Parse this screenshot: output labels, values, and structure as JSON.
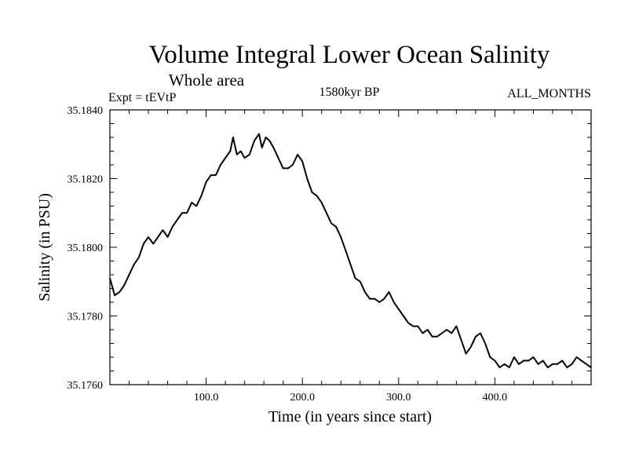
{
  "chart_data": {
    "type": "line",
    "title": "Volume Integral Lower Ocean Salinity",
    "subtitle": "Whole area",
    "experiment": "Expt = tEVtP",
    "period": "1580kyr BP",
    "months": "ALL_MONTHS",
    "xlabel": "Time (in years since start)",
    "ylabel": "Salinity (in PSU)",
    "xlim": [
      0,
      500
    ],
    "ylim": [
      35.176,
      35.184
    ],
    "xticks": [
      100,
      200,
      300,
      400
    ],
    "xtick_labels": [
      "100.0",
      "200.0",
      "300.0",
      "400.0"
    ],
    "yticks": [
      35.176,
      35.178,
      35.18,
      35.182,
      35.184
    ],
    "ytick_labels": [
      "35.1760",
      "35.1780",
      "35.1800",
      "35.1820",
      "35.1840"
    ],
    "grid": false,
    "series": [
      {
        "name": "salinity",
        "x": [
          0,
          5,
          10,
          15,
          20,
          25,
          30,
          35,
          40,
          45,
          50,
          55,
          60,
          65,
          70,
          75,
          80,
          85,
          90,
          95,
          100,
          105,
          110,
          115,
          120,
          125,
          128,
          132,
          136,
          140,
          145,
          150,
          155,
          158,
          162,
          166,
          170,
          175,
          180,
          185,
          190,
          195,
          200,
          205,
          210,
          215,
          220,
          225,
          230,
          235,
          240,
          245,
          250,
          255,
          260,
          265,
          270,
          275,
          280,
          285,
          290,
          295,
          300,
          305,
          310,
          315,
          320,
          325,
          330,
          335,
          340,
          345,
          350,
          355,
          360,
          365,
          370,
          375,
          380,
          385,
          390,
          395,
          400,
          405,
          410,
          415,
          420,
          425,
          430,
          435,
          440,
          445,
          450,
          455,
          460,
          465,
          470,
          475,
          480,
          485,
          490,
          495,
          500
        ],
        "values": [
          35.1791,
          35.1786,
          35.1787,
          35.1789,
          35.1792,
          35.1795,
          35.1797,
          35.1801,
          35.1803,
          35.1801,
          35.1803,
          35.1805,
          35.1803,
          35.1806,
          35.1808,
          35.181,
          35.181,
          35.1813,
          35.1812,
          35.1815,
          35.1819,
          35.1821,
          35.1821,
          35.1824,
          35.1826,
          35.1828,
          35.1832,
          35.1827,
          35.1828,
          35.1826,
          35.1827,
          35.1831,
          35.1833,
          35.1829,
          35.1832,
          35.1831,
          35.1829,
          35.1826,
          35.1823,
          35.1823,
          35.1824,
          35.1827,
          35.1825,
          35.182,
          35.1816,
          35.1815,
          35.1813,
          35.181,
          35.1807,
          35.1806,
          35.1803,
          35.1799,
          35.1795,
          35.1791,
          35.179,
          35.1787,
          35.1785,
          35.1785,
          35.1784,
          35.1785,
          35.1787,
          35.1784,
          35.1782,
          35.178,
          35.1778,
          35.1777,
          35.1777,
          35.1775,
          35.1776,
          35.1774,
          35.1774,
          35.1775,
          35.1776,
          35.1775,
          35.1777,
          35.1773,
          35.1769,
          35.1771,
          35.1774,
          35.1775,
          35.1772,
          35.1768,
          35.1767,
          35.1765,
          35.1766,
          35.1765,
          35.1768,
          35.1766,
          35.1767,
          35.1767,
          35.1768,
          35.1766,
          35.1767,
          35.1765,
          35.1766,
          35.1766,
          35.1767,
          35.1765,
          35.1766,
          35.1768,
          35.1767,
          35.1766,
          35.1765
        ]
      }
    ]
  }
}
